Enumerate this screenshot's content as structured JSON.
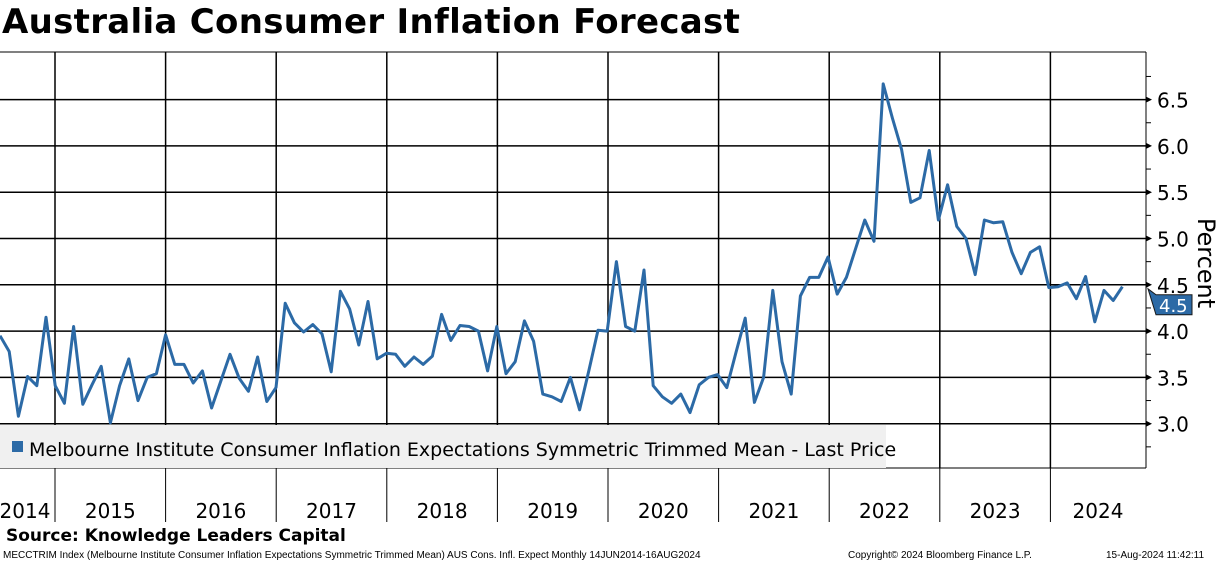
{
  "title": "Australia Consumer Inflation Forecast",
  "source": "Source: Knowledge Leaders Capital",
  "footer": {
    "description": "MECCTRIM Index (Melbourne Institute Consumer Inflation Expectations Symmetric Trimmed Mean) AUS Cons. Infl. Expect  Monthly 14JUN2014-16AUG2024",
    "copyright": "Copyright© 2024 Bloomberg Finance L.P.",
    "timestamp": "15-Aug-2024 11:42:11"
  },
  "chart_data": {
    "type": "line",
    "title": "Australia Consumer Inflation Forecast",
    "ylabel": "Percent",
    "xlabel": "",
    "ylim": [
      2.5,
      7.0
    ],
    "yticks": [
      "3.0",
      "3.5",
      "4.0",
      "4.5",
      "5.0",
      "5.5",
      "6.0",
      "6.5"
    ],
    "xticks": [
      "2014",
      "2015",
      "2016",
      "2017",
      "2018",
      "2019",
      "2020",
      "2021",
      "2022",
      "2023",
      "2024"
    ],
    "x_start": "2014-06",
    "x_end": "2024-08",
    "frequency": "monthly",
    "grid": true,
    "legend_position": "bottom-left",
    "last_value_label": "4.5",
    "colors": {
      "series": "#2c6aa6",
      "legend_bg": "#f0f0f0"
    },
    "series": [
      {
        "name": "Melbourne Institute Consumer Inflation Expectations Symmetric Trimmed Mean - Last Price",
        "values": [
          3.95,
          3.78,
          3.08,
          3.51,
          3.41,
          4.15,
          3.41,
          3.22,
          4.05,
          3.21,
          3.42,
          3.62,
          3.01,
          3.41,
          3.7,
          3.25,
          3.5,
          3.54,
          3.96,
          3.64,
          3.64,
          3.44,
          3.57,
          3.17,
          3.46,
          3.75,
          3.49,
          3.35,
          3.72,
          3.24,
          3.39,
          4.3,
          4.09,
          3.99,
          4.07,
          3.97,
          3.56,
          4.43,
          4.24,
          3.85,
          4.32,
          3.7,
          3.76,
          3.75,
          3.62,
          3.72,
          3.64,
          3.73,
          4.18,
          3.9,
          4.06,
          4.05,
          4.0,
          3.57,
          4.05,
          3.54,
          3.67,
          4.11,
          3.89,
          3.32,
          3.29,
          3.24,
          3.5,
          3.15,
          3.57,
          4.01,
          4.0,
          4.75,
          4.05,
          4.0,
          4.66,
          3.41,
          3.29,
          3.22,
          3.32,
          3.12,
          3.42,
          3.5,
          3.53,
          3.39,
          3.77,
          4.14,
          3.23,
          3.5,
          4.44,
          3.67,
          3.32,
          4.38,
          4.58,
          4.58,
          4.8,
          4.4,
          4.58,
          4.89,
          5.2,
          4.97,
          6.67,
          6.3,
          5.96,
          5.39,
          5.44,
          5.95,
          5.2,
          5.58,
          5.13,
          5.0,
          4.61,
          5.2,
          5.17,
          5.18,
          4.85,
          4.62,
          4.85,
          4.91,
          4.47,
          4.48,
          4.52,
          4.35,
          4.59,
          4.1,
          4.44,
          4.33,
          4.48
        ]
      }
    ]
  }
}
